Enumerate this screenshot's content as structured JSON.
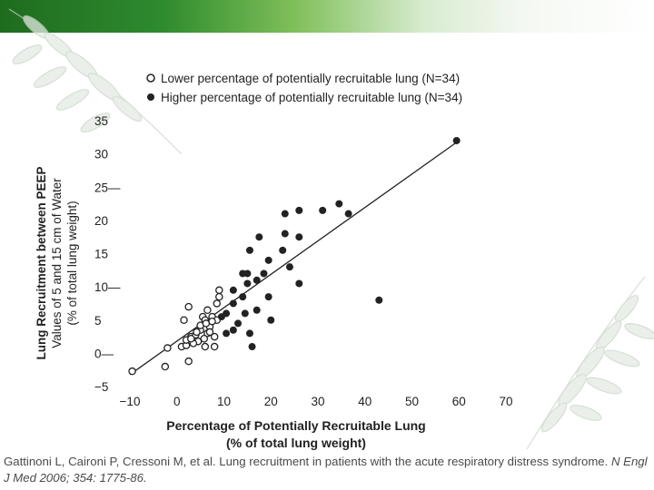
{
  "chart_data": {
    "type": "scatter",
    "xlabel_line1": "Percentage of Potentially Recruitable Lung",
    "xlabel_line2": "(% of total lung weight)",
    "ylabel_line1": "Lung Recruitment between PEEP",
    "ylabel_line2": "Values of 5 and 15 cm of Water",
    "ylabel_line3": "(% of total lung weight)",
    "xlim": [
      -10,
      70
    ],
    "ylim": [
      -5,
      35
    ],
    "x_ticks": [
      "−10",
      "0",
      "10",
      "20",
      "30",
      "40",
      "50",
      "60",
      "70"
    ],
    "y_ticks": [
      "−5",
      "0—",
      "5",
      "10—",
      "15",
      "20",
      "25—",
      "30",
      "35"
    ],
    "legend": {
      "open": "Lower percentage of potentially recruitable lung (N=34)",
      "filled": "Higher percentage of potentially recruitable lung (N=34)"
    },
    "regression": {
      "x": [
        -10,
        60
      ],
      "y": [
        -3.2,
        32.0
      ]
    },
    "series": [
      {
        "name": "Lower percentage of potentially recruitable lung (N=34)",
        "marker": "open",
        "points": [
          [
            -9.5,
            -2.7
          ],
          [
            -2.5,
            -2.0
          ],
          [
            2.5,
            -1.2
          ],
          [
            -2.0,
            0.8
          ],
          [
            1.0,
            1.0
          ],
          [
            2.0,
            1.2
          ],
          [
            3.0,
            2.5
          ],
          [
            2.0,
            2.0
          ],
          [
            4.0,
            2.8
          ],
          [
            5.0,
            3.5
          ],
          [
            4.5,
            1.8
          ],
          [
            6.0,
            1.0
          ],
          [
            6.5,
            3.0
          ],
          [
            7.0,
            4.0
          ],
          [
            8.0,
            2.5
          ],
          [
            5.5,
            5.5
          ],
          [
            6.5,
            6.5
          ],
          [
            7.5,
            5.5
          ],
          [
            8.5,
            5.0
          ],
          [
            8.5,
            7.5
          ],
          [
            9.0,
            8.5
          ],
          [
            9.0,
            9.5
          ],
          [
            6.0,
            5.0
          ],
          [
            1.5,
            5.0
          ],
          [
            2.5,
            7.0
          ],
          [
            8.0,
            1.0
          ],
          [
            7.0,
            3.2
          ],
          [
            5.0,
            4.2
          ],
          [
            3.5,
            1.5
          ],
          [
            4.2,
            3.2
          ],
          [
            5.8,
            2.2
          ],
          [
            6.2,
            4.5
          ],
          [
            3.0,
            2.2
          ],
          [
            7.5,
            4.8
          ]
        ]
      },
      {
        "name": "Higher percentage of potentially recruitable lung (N=34)",
        "marker": "filled",
        "points": [
          [
            59.5,
            32.0
          ],
          [
            34.5,
            22.5
          ],
          [
            36.5,
            21.0
          ],
          [
            31.0,
            21.5
          ],
          [
            26.0,
            21.5
          ],
          [
            23.0,
            21.0
          ],
          [
            23.0,
            18.0
          ],
          [
            26.0,
            17.5
          ],
          [
            17.5,
            17.5
          ],
          [
            15.5,
            15.5
          ],
          [
            22.5,
            15.5
          ],
          [
            19.5,
            14.0
          ],
          [
            24.0,
            13.0
          ],
          [
            14.0,
            12.0
          ],
          [
            15.0,
            12.0
          ],
          [
            18.5,
            12.0
          ],
          [
            17.0,
            11.0
          ],
          [
            15.0,
            10.5
          ],
          [
            26.0,
            10.5
          ],
          [
            12.0,
            9.5
          ],
          [
            14.0,
            8.5
          ],
          [
            19.5,
            8.5
          ],
          [
            12.0,
            7.5
          ],
          [
            17.0,
            6.5
          ],
          [
            10.5,
            6.0
          ],
          [
            14.5,
            6.0
          ],
          [
            20.0,
            5.0
          ],
          [
            9.5,
            5.5
          ],
          [
            13.0,
            4.5
          ],
          [
            12.0,
            3.5
          ],
          [
            15.5,
            3.0
          ],
          [
            10.5,
            3.0
          ],
          [
            16.0,
            1.0
          ],
          [
            43.0,
            8.0
          ]
        ]
      }
    ]
  },
  "caption": {
    "text": "Gattinoni L, Caironi P, Cressoni M, et al. Lung recruitment in patients with the acute respiratory distress syndrome. ",
    "citation": "N Engl J Med 2006; 354: 1775-86."
  }
}
